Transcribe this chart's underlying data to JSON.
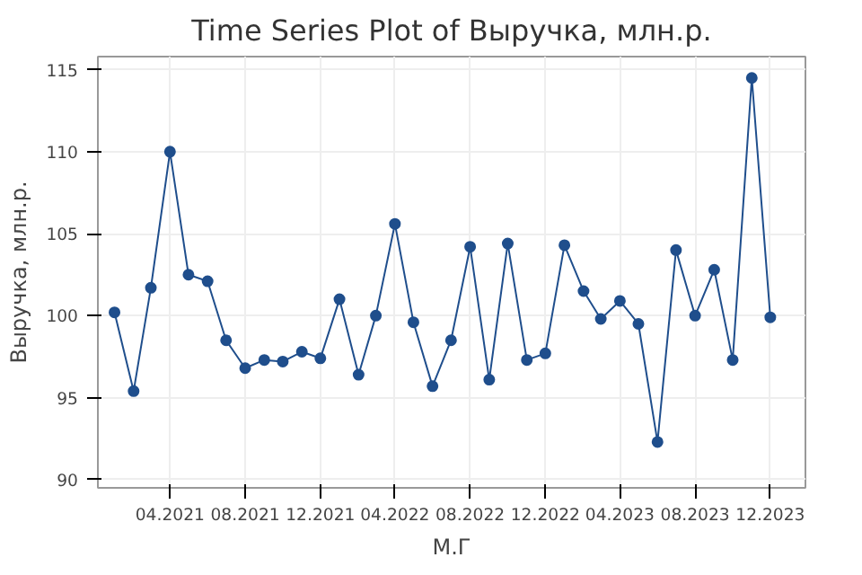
{
  "chart_data": {
    "type": "line",
    "title": "Time Series Plot of Выручка, млн.р.",
    "xlabel": "М.Г",
    "ylabel": "Выручка, млн.р.",
    "x": [
      "2021-01",
      "2021-02",
      "2021-03",
      "2021-04",
      "2021-05",
      "2021-06",
      "2021-07",
      "2021-08",
      "2021-09",
      "2021-10",
      "2021-11",
      "2021-12",
      "2022-01",
      "2022-02",
      "2022-03",
      "2022-04",
      "2022-05",
      "2022-06",
      "2022-07",
      "2022-08",
      "2022-09",
      "2022-10",
      "2022-11",
      "2022-12",
      "2023-01",
      "2023-02",
      "2023-03",
      "2023-04",
      "2023-05",
      "2023-06",
      "2023-07",
      "2023-08",
      "2023-09",
      "2023-10",
      "2023-11",
      "2023-12"
    ],
    "series": [
      {
        "color": "#1f4e8c",
        "values": [
          100.2,
          95.4,
          101.7,
          110.0,
          102.5,
          102.1,
          98.5,
          96.8,
          97.3,
          97.2,
          97.8,
          97.4,
          101.0,
          96.4,
          100.0,
          105.6,
          99.6,
          95.7,
          98.5,
          104.2,
          96.1,
          104.4,
          97.3,
          97.7,
          104.3,
          101.5,
          99.8,
          100.9,
          99.5,
          92.3,
          104.0,
          100.0,
          102.8,
          97.3,
          114.5,
          99.9
        ]
      }
    ],
    "xlim": [
      "2020-12-05",
      "2024-01-27"
    ],
    "xticks": [
      {
        "value": "2021-04",
        "label": "04.2021"
      },
      {
        "value": "2021-08",
        "label": "08.2021"
      },
      {
        "value": "2021-12",
        "label": "12.2021"
      },
      {
        "value": "2022-04",
        "label": "04.2022"
      },
      {
        "value": "2022-08",
        "label": "08.2022"
      },
      {
        "value": "2022-12",
        "label": "12.2022"
      },
      {
        "value": "2023-04",
        "label": "04.2023"
      },
      {
        "value": "2023-08",
        "label": "08.2023"
      },
      {
        "value": "2023-12",
        "label": "12.2023"
      }
    ],
    "ylim": [
      89.5,
      115.8
    ],
    "yticks": [
      90,
      95,
      100,
      105,
      110,
      115
    ],
    "grid": true,
    "marker": "circle",
    "line_style": "solid"
  }
}
